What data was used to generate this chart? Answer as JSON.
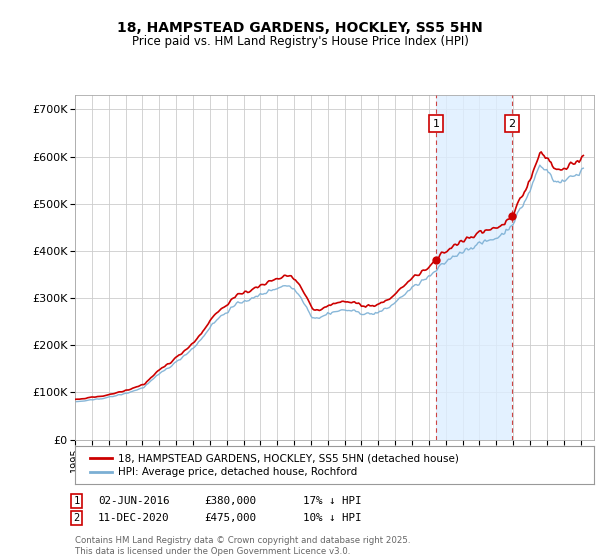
{
  "title": "18, HAMPSTEAD GARDENS, HOCKLEY, SS5 5HN",
  "subtitle": "Price paid vs. HM Land Registry's House Price Index (HPI)",
  "background_color": "#ffffff",
  "plot_bg_color": "#ffffff",
  "grid_color": "#cccccc",
  "ylim": [
    0,
    730000
  ],
  "yticks": [
    0,
    100000,
    200000,
    300000,
    400000,
    500000,
    600000,
    700000
  ],
  "ytick_labels": [
    "£0",
    "£100K",
    "£200K",
    "£300K",
    "£400K",
    "£500K",
    "£600K",
    "£700K"
  ],
  "sale1_date": 2016.42,
  "sale1_price": 380000,
  "sale2_date": 2020.94,
  "sale2_price": 475000,
  "legend_line1": "18, HAMPSTEAD GARDENS, HOCKLEY, SS5 5HN (detached house)",
  "legend_line2": "HPI: Average price, detached house, Rochford",
  "footer": "Contains HM Land Registry data © Crown copyright and database right 2025.\nThis data is licensed under the Open Government Licence v3.0.",
  "line_price_color": "#cc0000",
  "line_hpi_color": "#7bafd4",
  "shade_color": "#ddeeff",
  "dashed_line_color": "#cc4444",
  "marker_color": "#cc0000",
  "box_color": "#cc0000",
  "xmin": 1995,
  "xmax": 2025.8
}
